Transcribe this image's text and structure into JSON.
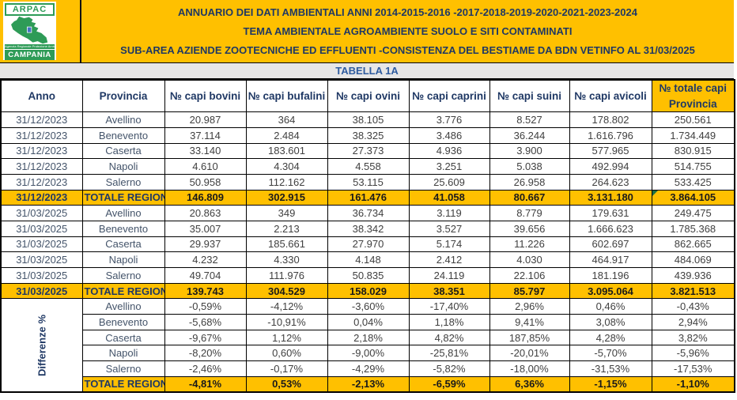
{
  "logo": {
    "org": "ARPAC",
    "agency_subtext": "Agenzia Regionale Protezione Ambientale",
    "region": "CAMPANIA"
  },
  "banner": {
    "lines": [
      "ANNUARIO DEI DATI AMBIENTALI ANNI 2014-2015-2016 -2017-2018-2019-2020-2021-2023-2024",
      "TEMA AMBIENTALE AGROAMBIENTE SUOLO E SITI CONTAMINATI",
      "SUB-AREA AZIENDE ZOOTECNICHE ED EFFLUENTI -CONSISTENZA DEL BESTIAME  DA BDN VETINFO AL 31/03/2025"
    ]
  },
  "table": {
    "caption": "TABELLA 1A",
    "col_headers": [
      "Anno",
      "Provincia",
      "№ capi bovini",
      "№ capi bufalini",
      "№ capi ovini",
      "№ capi caprini",
      "№ capi suini",
      "№ capi avicoli",
      "№ totale capi Provincia"
    ],
    "sections": [
      {
        "anno": "31/12/2023",
        "rows": [
          {
            "provincia": "Avellino",
            "values": [
              "20.987",
              "364",
              "38.105",
              "3.776",
              "8.527",
              "178.802",
              "250.561"
            ]
          },
          {
            "provincia": "Benevento",
            "values": [
              "37.114",
              "2.484",
              "38.325",
              "3.486",
              "36.244",
              "1.616.796",
              "1.734.449"
            ]
          },
          {
            "provincia": "Caserta",
            "values": [
              "33.140",
              "183.601",
              "27.373",
              "4.936",
              "3.900",
              "577.965",
              "830.915"
            ]
          },
          {
            "provincia": "Napoli",
            "values": [
              "4.610",
              "4.304",
              "4.558",
              "3.251",
              "5.038",
              "492.994",
              "514.755"
            ]
          },
          {
            "provincia": "Salerno",
            "values": [
              "50.958",
              "112.162",
              "53.115",
              "25.609",
              "26.958",
              "264.623",
              "533.425"
            ]
          }
        ],
        "total": {
          "provincia": "TOTALE REGIONE",
          "values": [
            "146.809",
            "302.915",
            "161.476",
            "41.058",
            "80.667",
            "3.131.180",
            "3.864.105"
          ],
          "has_note_marker": true
        }
      },
      {
        "anno": "31/03/2025",
        "rows": [
          {
            "provincia": "Avellino",
            "values": [
              "20.863",
              "349",
              "36.734",
              "3.119",
              "8.779",
              "179.631",
              "249.475"
            ]
          },
          {
            "provincia": "Benevento",
            "values": [
              "35.007",
              "2.213",
              "38.342",
              "3.527",
              "39.656",
              "1.666.623",
              "1.785.368"
            ]
          },
          {
            "provincia": "Caserta",
            "values": [
              "29.937",
              "185.661",
              "27.970",
              "5.174",
              "11.226",
              "602.697",
              "862.665"
            ]
          },
          {
            "provincia": "Napoli",
            "values": [
              "4.232",
              "4.330",
              "4.148",
              "2.412",
              "4.030",
              "464.917",
              "484.069"
            ]
          },
          {
            "provincia": "Salerno",
            "values": [
              "49.704",
              "111.976",
              "50.835",
              "24.119",
              "22.106",
              "181.196",
              "439.936"
            ]
          }
        ],
        "total": {
          "provincia": "TOTALE REGIONE",
          "values": [
            "139.743",
            "304.529",
            "158.029",
            "38.351",
            "85.797",
            "3.095.064",
            "3.821.513"
          ],
          "has_note_marker": false
        }
      },
      {
        "anno": "Differenze %",
        "vertical": true,
        "rows": [
          {
            "provincia": "Avellino",
            "values": [
              "-0,59%",
              "-4,12%",
              "-3,60%",
              "-17,40%",
              "2,96%",
              "0,46%",
              "-0,43%"
            ]
          },
          {
            "provincia": "Benevento",
            "values": [
              "-5,68%",
              "-10,91%",
              "0,04%",
              "1,18%",
              "9,41%",
              "3,08%",
              "2,94%"
            ]
          },
          {
            "provincia": "Caserta",
            "values": [
              "-9,67%",
              "1,12%",
              "2,18%",
              "4,82%",
              "187,85%",
              "4,28%",
              "3,82%"
            ]
          },
          {
            "provincia": "Napoli",
            "values": [
              "-8,20%",
              "0,60%",
              "-9,00%",
              "-25,81%",
              "-20,01%",
              "-5,70%",
              "-5,96%"
            ]
          },
          {
            "provincia": "Salerno",
            "values": [
              "-2,46%",
              "-0,17%",
              "-4,29%",
              "-5,82%",
              "-18,00%",
              "-31,53%",
              "-17,53%"
            ]
          }
        ],
        "total": {
          "provincia": "TOTALE REGIONE",
          "values": [
            "-4,81%",
            "0,53%",
            "-2,13%",
            "-6,59%",
            "6,36%",
            "-1,15%",
            "-1,10%"
          ],
          "has_note_marker": false
        }
      }
    ]
  },
  "colors": {
    "accent_orange": "#FFC000",
    "header_navy": "#1F3864",
    "caption_blue": "#2E5B9F",
    "label_slate": "#44546A",
    "number_gray": "#404040",
    "logo_green": "#2E9B57",
    "note_marker_green": "#1E7145",
    "caption_strip_bg": "#E7E6E6"
  }
}
